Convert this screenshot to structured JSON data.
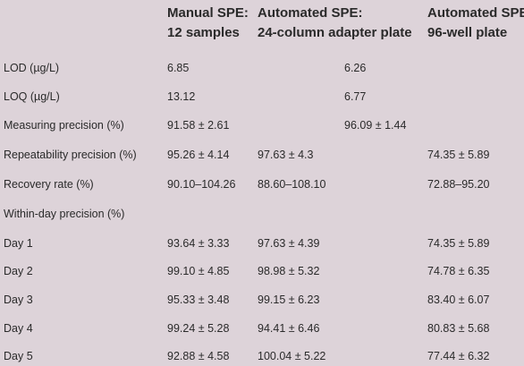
{
  "headers": [
    {
      "line1": "Manual SPE:",
      "line2": "12 samples"
    },
    {
      "line1": "Automated SPE:",
      "line2": "24-column adapter plate"
    },
    {
      "line1": "Automated SPE:",
      "line2": "96-well plate"
    }
  ],
  "rows": [
    {
      "label": "LOD (µg/L)",
      "manual": "6.85",
      "col24": "",
      "mid": "6.26",
      "well96": ""
    },
    {
      "label": "LOQ (µg/L)",
      "manual": "13.12",
      "col24": "",
      "mid": "6.77",
      "well96": ""
    },
    {
      "label": "Measuring precision (%)",
      "manual": "91.58 ± 2.61",
      "col24": "",
      "mid": "96.09 ± 1.44",
      "well96": ""
    },
    {
      "label": "Repeatability precision (%)",
      "manual": "95.26 ± 4.14",
      "col24": "97.63 ± 4.3",
      "mid": "",
      "well96": "74.35 ± 5.89"
    },
    {
      "label": "Recovery rate (%)",
      "manual": "90.10–104.26",
      "col24": "88.60–108.10",
      "mid": "",
      "well96": "72.88–95.20"
    },
    {
      "label": "Within-day precision (%)",
      "manual": "",
      "col24": "",
      "mid": "",
      "well96": ""
    },
    {
      "label": "Day 1",
      "manual": "93.64 ± 3.33",
      "col24": "97.63 ± 4.39",
      "mid": "",
      "well96": "74.35 ± 5.89"
    },
    {
      "label": "Day 2",
      "manual": "99.10 ± 4.85",
      "col24": "98.98 ± 5.32",
      "mid": "",
      "well96": "74.78 ± 6.35"
    },
    {
      "label": "Day 3",
      "manual": "95.33 ± 3.48",
      "col24": "99.15 ± 6.23",
      "mid": "",
      "well96": "83.40 ± 6.07"
    },
    {
      "label": "Day 4",
      "manual": "99.24 ± 5.28",
      "col24": "94.41 ± 6.46",
      "mid": "",
      "well96": "80.83 ± 5.68"
    },
    {
      "label": "Day 5",
      "manual": "92.88 ± 4.58",
      "col24": "100.04 ± 5.22",
      "mid": "",
      "well96": "77.44 ± 6.32"
    }
  ]
}
